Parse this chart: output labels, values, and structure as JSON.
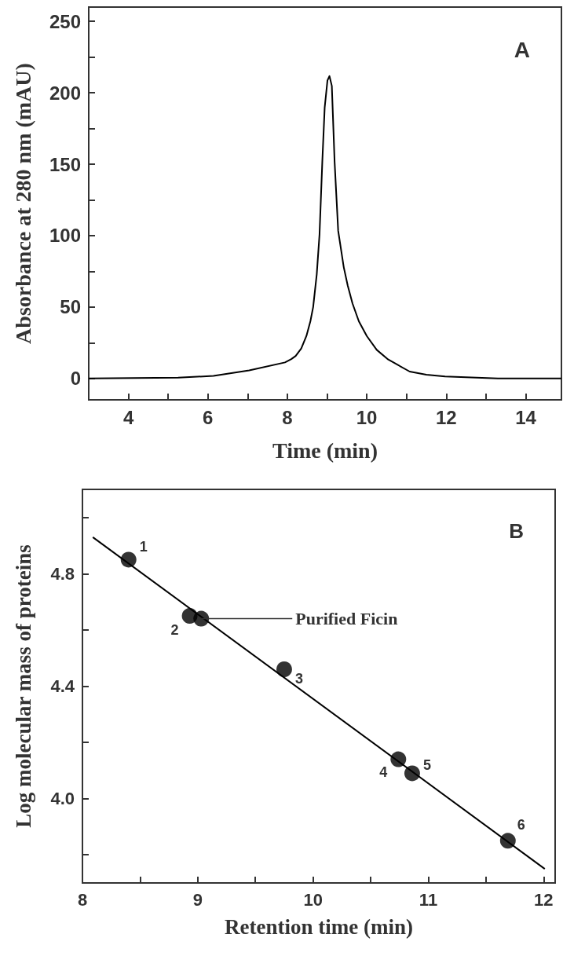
{
  "chart_data": [
    {
      "type": "line",
      "xlabel": "Time (min)",
      "ylabel": "Absorbance at 280 nm (mAU)",
      "annotations": [
        "A"
      ],
      "xlim": [
        3,
        14.9
      ],
      "xticks": [
        4,
        {
          "value": 5,
          "label": null
        },
        6,
        {
          "value": 7,
          "label": null
        },
        8,
        {
          "value": 9,
          "label": null
        },
        10,
        {
          "value": 11,
          "label": null
        },
        12,
        {
          "value": 13,
          "label": null
        },
        14
      ],
      "ylim": [
        -15,
        260
      ],
      "yticks": [
        0,
        {
          "value": 25,
          "label": null
        },
        50,
        {
          "value": 75,
          "label": null
        },
        100,
        {
          "value": 125,
          "label": null
        },
        150,
        {
          "value": 175,
          "label": null
        },
        200,
        {
          "value": 225,
          "label": null
        },
        250
      ],
      "marker": "none",
      "grid": false,
      "series": [
        {
          "color": "#000000",
          "x": [
            3.0,
            5.25,
            6.14,
            7.04,
            7.94,
            8.1,
            8.21,
            8.35,
            8.48,
            8.58,
            8.65,
            8.74,
            8.81,
            8.88,
            8.94,
            9.01,
            9.06,
            9.12,
            9.19,
            9.28,
            9.42,
            9.52,
            9.64,
            9.8,
            10.0,
            10.25,
            10.54,
            11.08,
            11.5,
            11.97,
            13.3,
            14.9
          ],
          "values": [
            0,
            0.5,
            1.8,
            5.6,
            11.2,
            13.5,
            15.7,
            21,
            29.7,
            40,
            50,
            72.8,
            100.8,
            151.5,
            189.6,
            208.6,
            211.7,
            204.8,
            151.5,
            103.3,
            77.9,
            65,
            52.5,
            40,
            29.7,
            20,
            13.2,
            4.8,
            2.6,
            1.3,
            0,
            0
          ]
        }
      ]
    },
    {
      "type": "scatter",
      "xlabel": "Retention time (min)",
      "ylabel": "Log molecular mass of proteins",
      "annotations": [
        "B",
        {
          "text": "1",
          "x": 8.4,
          "y": 4.85
        },
        {
          "text": "2",
          "x": 8.93,
          "y": 4.65
        },
        {
          "text": "3",
          "x": 9.75,
          "y": 4.46
        },
        {
          "text": "4",
          "x": 10.74,
          "y": 4.14
        },
        {
          "text": "5",
          "x": 10.86,
          "y": 4.09
        },
        {
          "text": "6",
          "x": 11.69,
          "y": 3.85
        },
        {
          "text": "Purified Ficin",
          "x": 9.03,
          "y": 4.64
        }
      ],
      "xlim": [
        8,
        12.1
      ],
      "xticks": [
        8,
        {
          "value": 8.5,
          "label": null
        },
        9,
        {
          "value": 9.5,
          "label": null
        },
        10,
        {
          "value": 10.5,
          "label": null
        },
        11,
        {
          "value": 11.5,
          "label": null
        },
        12
      ],
      "ylim": [
        3.7,
        5.1
      ],
      "yticks": [
        {
          "value": 3.8,
          "label": null
        },
        {
          "value": 4.0,
          "label": "4.0"
        },
        {
          "value": 4.2,
          "label": null
        },
        4.4,
        {
          "value": 4.6,
          "label": null
        },
        4.8,
        {
          "value": 5.0,
          "label": null
        }
      ],
      "marker": "circle",
      "grid": false,
      "series": [
        {
          "type": "line",
          "color": "#000000",
          "marker": "none",
          "x": [
            8.09,
            12.01
          ],
          "values": [
            4.93,
            3.75
          ]
        },
        {
          "color": "#000000",
          "x": [
            8.4,
            8.93,
            9.75,
            10.74,
            10.86,
            11.69
          ],
          "values": [
            4.85,
            4.65,
            4.46,
            4.14,
            4.09,
            3.85
          ]
        },
        {
          "color": "#000000",
          "x": [
            9.03
          ],
          "values": [
            4.64
          ]
        }
      ]
    }
  ]
}
